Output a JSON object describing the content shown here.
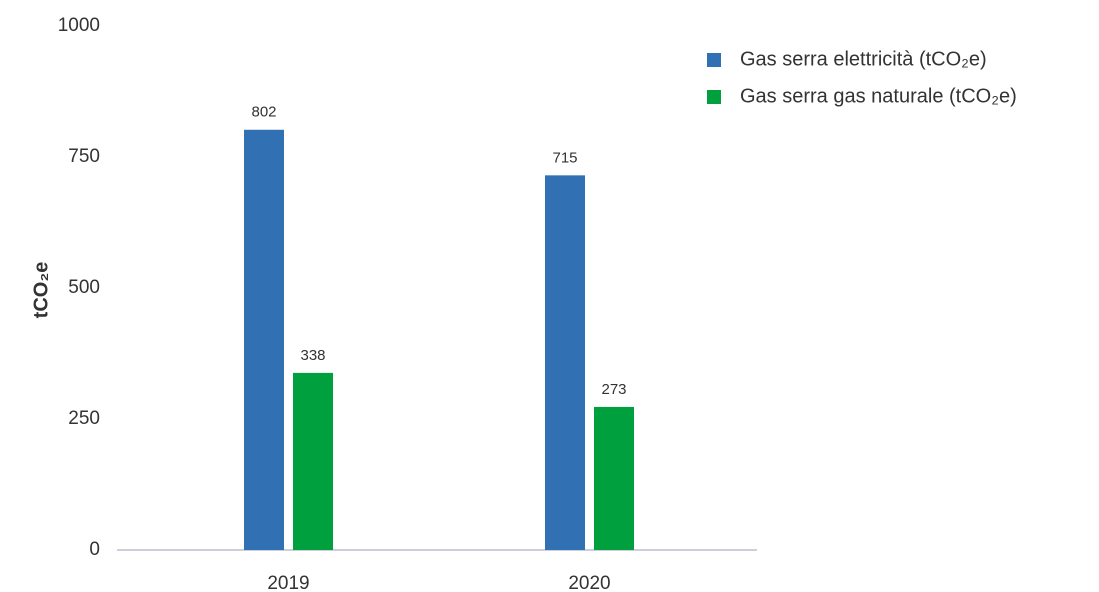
{
  "chart_data": {
    "type": "bar",
    "y_label": "tCO₂e",
    "categories": [
      "2019",
      "2020"
    ],
    "series": [
      {
        "name": "Gas serra elettricità (tCO₂e)",
        "color": "#3070b3",
        "values": [
          802,
          715
        ]
      },
      {
        "name": "Gas serra gas naturale (tCO₂e)",
        "color": "#00a03e",
        "values": [
          338,
          273
        ]
      }
    ],
    "ylim": [
      0,
      1000
    ],
    "yticks": [
      0,
      250,
      500,
      750,
      1000
    ],
    "grid": false,
    "legend": "top-right"
  }
}
